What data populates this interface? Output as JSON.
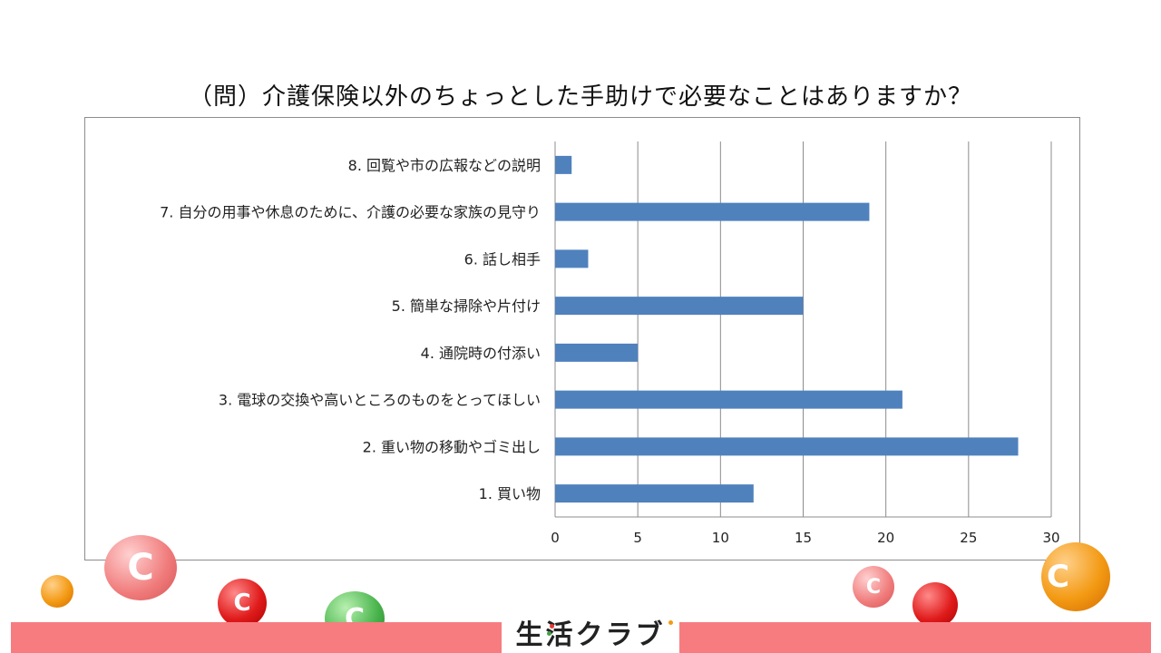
{
  "page": {
    "title": "（問）介護保険以外のちょっとした手助けで必要なことはありますか？"
  },
  "chart_data": {
    "type": "bar",
    "orientation": "horizontal",
    "categories": [
      "8. 回覧や市の広報などの説明",
      "7. 自分の用事や休息のために、介護の必要な家族の見守り",
      "6. 話し相手",
      "5. 簡単な掃除や片付け",
      "4. 通院時の付添い",
      "3. 電球の交換や高いところのものをとってほしい",
      "2. 重い物の移動やゴミ出し",
      "1. 買い物"
    ],
    "values": [
      1,
      19,
      2,
      15,
      5,
      21,
      28,
      12
    ],
    "xlim": [
      0,
      30
    ],
    "xticks": [
      "0",
      "5",
      "10",
      "15",
      "20",
      "25",
      "30"
    ],
    "bar_color": "#4f81bd",
    "grid": "vertical",
    "legend": "none"
  },
  "footer": {
    "logo_text": "生活クラブ",
    "band_color": "#f67c80"
  }
}
